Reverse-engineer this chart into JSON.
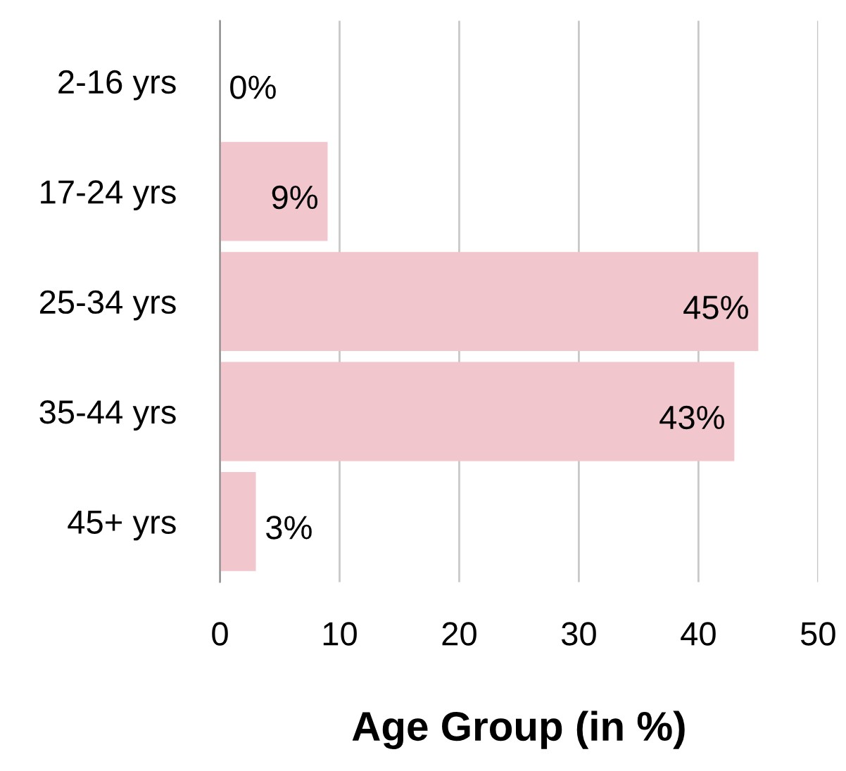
{
  "chart_data": {
    "type": "bar",
    "orientation": "horizontal",
    "xlabel": "Age Group (in %)",
    "categories": [
      "2-16 yrs",
      "17-24 yrs",
      "25-34 yrs",
      "35-44 yrs",
      "45+ yrs"
    ],
    "values": [
      0,
      9,
      45,
      43,
      3
    ],
    "value_labels": [
      "0%",
      "9%",
      "45%",
      "43%",
      "3%"
    ],
    "color": "#f2c6cd",
    "xlim": [
      0,
      50
    ],
    "xticks": [
      0,
      10,
      20,
      30,
      40,
      50
    ],
    "grid": "x",
    "legend": false
  }
}
